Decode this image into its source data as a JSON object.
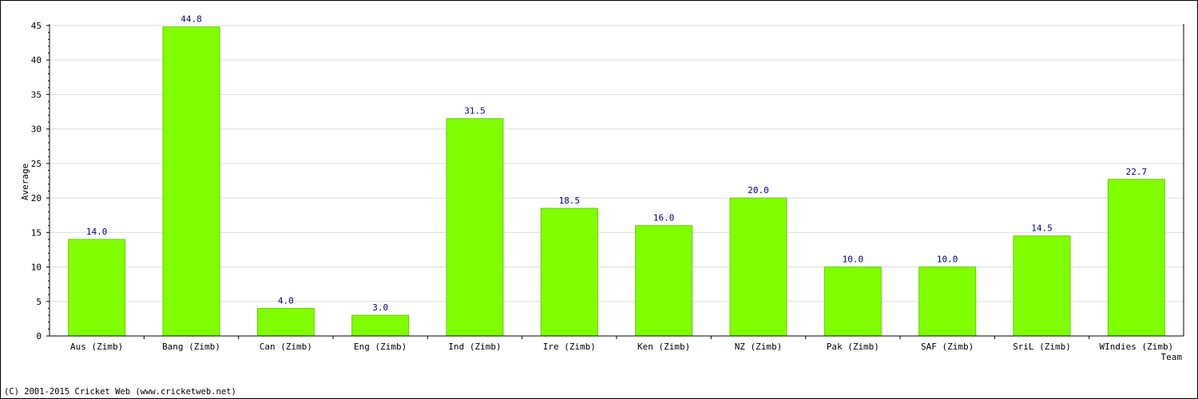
{
  "chart_data": {
    "type": "bar",
    "title": "",
    "xlabel": "Team",
    "ylabel": "Average",
    "categories": [
      "Aus (Zimb)",
      "Bang (Zimb)",
      "Can (Zimb)",
      "Eng (Zimb)",
      "Ind (Zimb)",
      "Ire (Zimb)",
      "Ken (Zimb)",
      "NZ (Zimb)",
      "Pak (Zimb)",
      "SAF (Zimb)",
      "SriL (Zimb)",
      "WIndies (Zimb)"
    ],
    "values": [
      14.0,
      44.8,
      4.0,
      3.0,
      31.5,
      18.5,
      16.0,
      20.0,
      10.0,
      10.0,
      14.5,
      22.7
    ],
    "value_labels": [
      "14.0",
      "44.8",
      "4.0",
      "3.0",
      "31.5",
      "18.5",
      "16.0",
      "20.0",
      "10.0",
      "10.0",
      "14.5",
      "22.7"
    ],
    "ylim": [
      0,
      45
    ],
    "yticks": [
      0,
      5,
      10,
      15,
      20,
      25,
      30,
      35,
      40,
      45
    ],
    "grid": true,
    "legend": "none"
  },
  "colors": {
    "bar_fill": "#80ff00",
    "bar_stroke": "#66cc00",
    "value_label": "#000080",
    "gridline": "#dddddd",
    "axis": "#000000",
    "text": "#000000"
  },
  "footer": {
    "copyright": "(C) 2001-2015 Cricket Web (www.cricketweb.net)"
  }
}
